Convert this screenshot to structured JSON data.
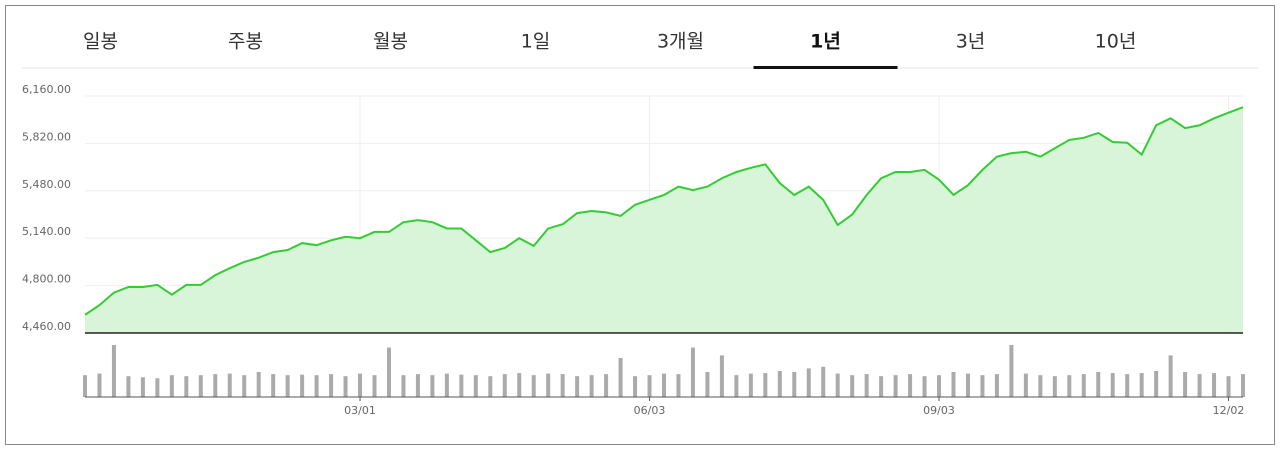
{
  "tabs": [
    "일봉",
    "주봉",
    "월봉",
    "1일",
    "3개월",
    "1년",
    "3년",
    "10년"
  ],
  "selected_tab": 5,
  "chart_data": {
    "type": "area",
    "x": [
      0,
      3,
      6,
      9,
      12,
      15,
      18,
      21,
      24,
      27,
      30,
      33,
      36,
      39,
      42,
      45,
      48,
      51,
      54,
      57,
      60,
      63,
      66,
      69,
      72,
      75,
      78,
      81,
      84,
      87,
      90,
      93,
      96,
      99,
      102,
      105,
      108,
      111,
      114,
      117,
      120,
      123,
      126,
      129,
      132,
      135,
      138,
      141,
      144,
      147,
      150,
      153,
      156,
      159,
      162,
      165,
      168,
      171,
      174,
      177,
      180,
      183,
      186,
      189,
      192,
      195,
      198,
      201,
      204,
      207,
      210,
      213,
      216,
      219,
      222,
      225,
      228,
      231,
      234,
      237,
      240
    ],
    "xlim": [
      0,
      240
    ],
    "xticks": [
      {
        "value": 57,
        "label": "03/01"
      },
      {
        "value": 117,
        "label": "06/03"
      },
      {
        "value": 177,
        "label": "09/03"
      },
      {
        "value": 237,
        "label": "12/02"
      }
    ],
    "ylim": [
      4460,
      6160
    ],
    "yticks": [
      {
        "value": 4460,
        "label": "4,460.00"
      },
      {
        "value": 4800,
        "label": "4,800.00"
      },
      {
        "value": 5140,
        "label": "5,140.00"
      },
      {
        "value": 5480,
        "label": "5,480.00"
      },
      {
        "value": 5820,
        "label": "5,820.00"
      },
      {
        "value": 6160,
        "label": "6,160.00"
      }
    ],
    "grid": true,
    "color": "#33cc33",
    "fill": "#d9f5d9",
    "values": [
      4590,
      4660,
      4750,
      4790,
      4790,
      4805,
      4735,
      4805,
      4805,
      4875,
      4925,
      4970,
      5000,
      5040,
      5055,
      5105,
      5090,
      5125,
      5150,
      5140,
      5185,
      5185,
      5255,
      5270,
      5255,
      5210,
      5210,
      5125,
      5040,
      5070,
      5140,
      5085,
      5210,
      5240,
      5320,
      5335,
      5325,
      5300,
      5380,
      5415,
      5450,
      5510,
      5485,
      5510,
      5570,
      5615,
      5645,
      5670,
      5535,
      5450,
      5510,
      5415,
      5235,
      5310,
      5450,
      5570,
      5615,
      5615,
      5630,
      5560,
      5450,
      5520,
      5630,
      5725,
      5750,
      5760,
      5725,
      5785,
      5845,
      5860,
      5895,
      5830,
      5825,
      5740,
      5950,
      6000,
      5930,
      5950,
      6000,
      6040,
      6080
    ],
    "volume": {
      "color": "#aaaaaa",
      "ylim": [
        0,
        100
      ],
      "values": [
        42,
        45,
        100,
        40,
        38,
        36,
        42,
        40,
        42,
        44,
        45,
        42,
        48,
        44,
        42,
        43,
        42,
        44,
        40,
        45,
        42,
        95,
        42,
        44,
        42,
        45,
        43,
        42,
        40,
        44,
        46,
        42,
        45,
        44,
        40,
        42,
        44,
        75,
        40,
        42,
        45,
        44,
        95,
        48,
        80,
        42,
        45,
        46,
        50,
        48,
        55,
        58,
        45,
        42,
        44,
        40,
        42,
        44,
        40,
        42,
        48,
        45,
        42,
        44,
        100,
        45,
        42,
        40,
        42,
        44,
        48,
        46,
        44,
        46,
        50,
        80,
        48,
        44,
        46,
        40,
        44
      ]
    }
  }
}
